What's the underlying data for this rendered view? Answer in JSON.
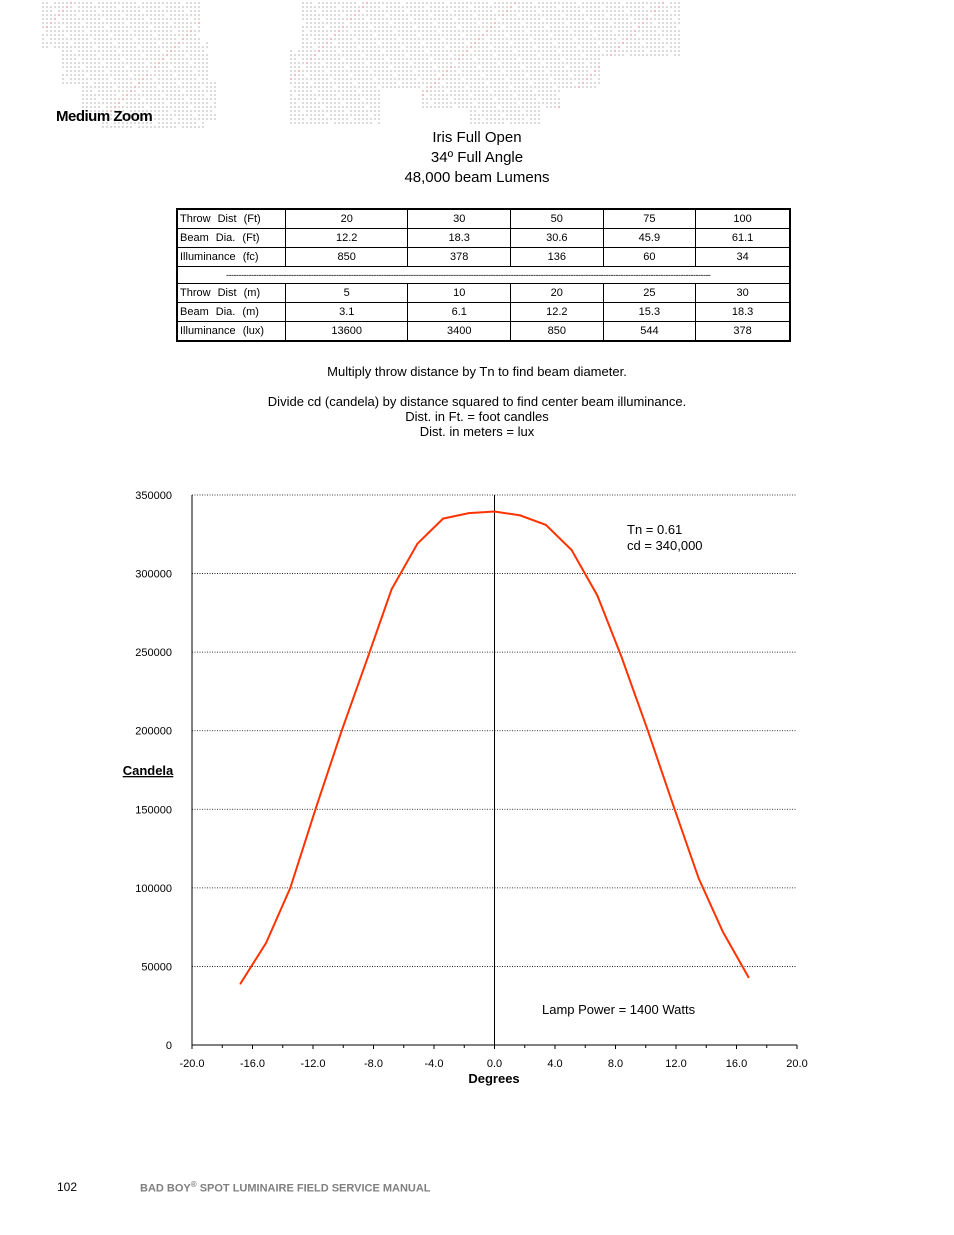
{
  "section_title": "Medium Zoom",
  "header": {
    "line1": "Iris Full Open",
    "line2": "34º Full Angle",
    "line3": "48,000  beam  Lumens"
  },
  "table": {
    "rows_ft": [
      {
        "label": "Throw   Dist   (Ft)",
        "values": [
          "20",
          "30",
          "50",
          "75",
          "100"
        ]
      },
      {
        "label": "Beam   Dia.  (Ft)",
        "values": [
          "12.2",
          "18.3",
          "30.6",
          "45.9",
          "61.1"
        ]
      },
      {
        "label": "Illuminance    (fc)",
        "values": [
          "850",
          "378",
          "136",
          "60",
          "34"
        ]
      }
    ],
    "separator": "--------------------------------------------------------------------------------------------------------------------------------------------------------------------------------------------------",
    "rows_m": [
      {
        "label": "Throw   Dist   (m)",
        "values": [
          "5",
          "10",
          "20",
          "25",
          "30"
        ]
      },
      {
        "label": "Beam   Dia.  (m)",
        "values": [
          "3.1",
          "6.1",
          "12.2",
          "15.3",
          "18.3"
        ]
      },
      {
        "label": "Illuminance    (lux)",
        "values": [
          "13600",
          "3400",
          "850",
          "544",
          "378"
        ]
      }
    ]
  },
  "notes": {
    "line1": "Multiply throw distance by Tn to find beam diameter.",
    "line2": "Divide cd (candela) by distance squared to find center beam illuminance.",
    "line3": "Dist. in Ft. = foot candles",
    "line4": "Dist. in meters = lux"
  },
  "chart_data": {
    "type": "line",
    "title": "",
    "xlabel": "Degrees",
    "ylabel": "Candela",
    "xlim": [
      -20,
      20
    ],
    "ylim": [
      0,
      350000
    ],
    "x_ticks": [
      "-20.0",
      "-16.0",
      "-12.0",
      "-8.0",
      "-4.0",
      "0.0",
      "4.0",
      "8.0",
      "12.0",
      "16.0",
      "20.0"
    ],
    "x_tick_values": [
      -20,
      -16,
      -12,
      -8,
      -4,
      0,
      4,
      8,
      12,
      16,
      20
    ],
    "y_ticks": [
      "0",
      "50000",
      "100000",
      "150000",
      "200000",
      "250000",
      "300000",
      "350000"
    ],
    "y_tick_values": [
      0,
      50000,
      100000,
      150000,
      200000,
      250000,
      300000,
      350000
    ],
    "grid": "horizontal dotted",
    "series": [
      {
        "color": "#ff3300",
        "x": [
          -16.8,
          -15.1,
          -13.5,
          -11.8,
          -10.1,
          -8.4,
          -6.8,
          -5.1,
          -3.4,
          -1.7,
          0.0,
          1.7,
          3.4,
          5.1,
          6.8,
          8.4,
          10.1,
          11.8,
          13.5,
          15.1,
          16.8
        ],
        "y": [
          39000,
          65000,
          100000,
          151000,
          200000,
          246000,
          290000,
          319000,
          335000,
          338500,
          339500,
          337000,
          331000,
          315000,
          286000,
          247000,
          201000,
          153000,
          106000,
          72000,
          43000
        ]
      }
    ],
    "annotations": {
      "tn": "Tn = 0.61",
      "cd": "cd  =  340,000",
      "lamp": "Lamp Power = 1400 Watts"
    }
  },
  "footer": {
    "page_number": "102",
    "manual_title_a": "BAD BOY",
    "manual_title_reg": "®",
    "manual_title_b": " SPOT LUMINAIRE FIELD SERVICE MANUAL"
  }
}
